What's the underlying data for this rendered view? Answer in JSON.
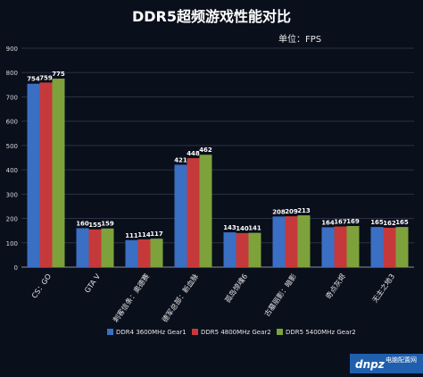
{
  "chart_data": {
    "type": "bar",
    "title": "DDR5超频游戏性能对比",
    "unit_label": "单位：FPS",
    "ylim": [
      0,
      900
    ],
    "yticks": [
      0,
      100,
      200,
      300,
      400,
      500,
      600,
      700,
      800,
      900
    ],
    "grid": true,
    "legend_position": "bottom",
    "categories": [
      "CS：GO",
      "GTA V",
      "刺客信条：奥德赛",
      "德军总部：新血脉",
      "孤岛惊魂6",
      "古墓丽影：暗影",
      "奇点灰烬",
      "无主之地3"
    ],
    "series": [
      {
        "name": "DDR4 3600MHz Gear1",
        "color": "#3a6fc4",
        "values": [
          754,
          160,
          111,
          421,
          143,
          208,
          164,
          165
        ]
      },
      {
        "name": "DDR5 4800MHz Gear2",
        "color": "#c6393b",
        "values": [
          759,
          155,
          114,
          448,
          140,
          209,
          167,
          162
        ]
      },
      {
        "name": "DDR5 5400MHz Gear2",
        "color": "#7da23c",
        "values": [
          775,
          159,
          117,
          462,
          141,
          213,
          169,
          165
        ]
      }
    ]
  },
  "watermark": "dnpz.net 电脑配置网"
}
